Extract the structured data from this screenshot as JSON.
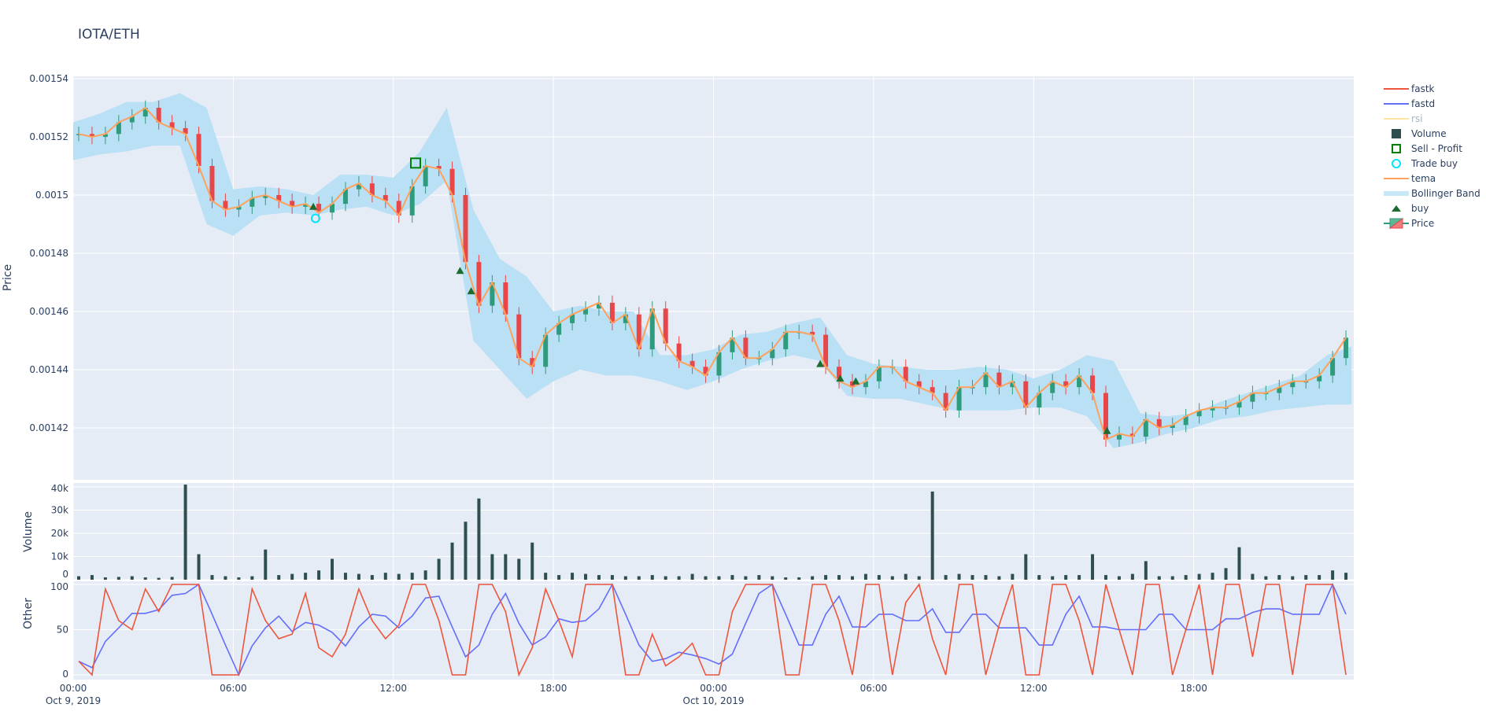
{
  "chart_data": {
    "type": "candlestick",
    "title": "IOTA/ETH",
    "colors": {
      "plot_bg": "#e5ecf6",
      "increasing": "#2e9c7c",
      "decreasing": "#e8474a",
      "tema": "#ffa15a",
      "bollinger": "#b9e0f5",
      "volume": "#2f4f4f",
      "fastk": "#ef553b",
      "fastd": "#636efa",
      "rsi": "#ffe4a0",
      "buy": "#1b6b32",
      "trade_buy": "#00e5ff",
      "sell_profit": "#008000"
    },
    "legend": {
      "position": "right",
      "items": [
        {
          "name": "fastk",
          "icon": "line",
          "color": "#ef553b"
        },
        {
          "name": "fastd",
          "icon": "line",
          "color": "#636efa"
        },
        {
          "name": "rsi",
          "icon": "line",
          "color": "#ffe4a0",
          "hidden": true
        },
        {
          "name": "Volume",
          "icon": "square",
          "color": "#2f4f4f"
        },
        {
          "name": "Sell - Profit",
          "icon": "open-square",
          "color": "#008000"
        },
        {
          "name": "Trade buy",
          "icon": "open-circle",
          "color": "#00e5ff"
        },
        {
          "name": "tema",
          "icon": "line",
          "color": "#ffa15a"
        },
        {
          "name": "Bollinger Band",
          "icon": "band",
          "color": "#c6e8f7"
        },
        {
          "name": "buy",
          "icon": "triangle-up",
          "color": "#1b6b32"
        },
        {
          "name": "Price",
          "icon": "candle",
          "color": "#2e9c7c"
        }
      ]
    },
    "panels": [
      {
        "ylabel": "Price",
        "ylim": [
          0.001402,
          0.00154
        ],
        "yticks": [
          "0.00142",
          "0.00144",
          "0.00146",
          "0.00148",
          "0.0015",
          "0.00152",
          "0.00154"
        ],
        "ytick_values": [
          0.00142,
          0.00144,
          0.00146,
          0.00148,
          0.0015,
          0.00152,
          0.00154
        ]
      },
      {
        "ylabel": "Volume",
        "ylim": [
          0,
          41500
        ],
        "yticks": [
          "0",
          "10k",
          "20k",
          "30k",
          "40k"
        ],
        "ytick_values": [
          0,
          10000,
          20000,
          30000,
          40000
        ]
      },
      {
        "ylabel": "Other",
        "ylim": [
          -5,
          104
        ],
        "yticks": [
          "0",
          "50",
          "100"
        ],
        "ytick_values": [
          0,
          50,
          100
        ]
      }
    ],
    "xlim": [
      "2019-10-09 00:00",
      "2019-10-10 23:55"
    ],
    "xticks": [
      {
        "time": "2019-10-09 00:00",
        "label": "00:00",
        "sublabel": "Oct 9, 2019"
      },
      {
        "time": "2019-10-09 06:00",
        "label": "06:00",
        "sublabel": ""
      },
      {
        "time": "2019-10-09 12:00",
        "label": "12:00",
        "sublabel": ""
      },
      {
        "time": "2019-10-09 18:00",
        "label": "18:00",
        "sublabel": ""
      },
      {
        "time": "2019-10-10 00:00",
        "label": "00:00",
        "sublabel": "Oct 10, 2019"
      },
      {
        "time": "2019-10-10 06:00",
        "label": "06:00",
        "sublabel": ""
      },
      {
        "time": "2019-10-10 12:00",
        "label": "12:00",
        "sublabel": ""
      },
      {
        "time": "2019-10-10 18:00",
        "label": "18:00",
        "sublabel": ""
      }
    ],
    "x": [
      "2019-10-09 00:00",
      "2019-10-09 00:30",
      "2019-10-09 01:00",
      "2019-10-09 01:30",
      "2019-10-09 02:00",
      "2019-10-09 02:30",
      "2019-10-09 03:00",
      "2019-10-09 03:30",
      "2019-10-09 04:00",
      "2019-10-09 04:30",
      "2019-10-09 05:00",
      "2019-10-09 05:30",
      "2019-10-09 06:00",
      "2019-10-09 06:30",
      "2019-10-09 07:00",
      "2019-10-09 07:30",
      "2019-10-09 08:00",
      "2019-10-09 08:30",
      "2019-10-09 09:00",
      "2019-10-09 09:30",
      "2019-10-09 10:00",
      "2019-10-09 10:30",
      "2019-10-09 11:00",
      "2019-10-09 11:30",
      "2019-10-09 12:00",
      "2019-10-09 12:30",
      "2019-10-09 13:00",
      "2019-10-09 13:30",
      "2019-10-09 14:00",
      "2019-10-09 14:30",
      "2019-10-09 15:00",
      "2019-10-09 15:30",
      "2019-10-09 16:00",
      "2019-10-09 16:30",
      "2019-10-09 17:00",
      "2019-10-09 17:30",
      "2019-10-09 18:00",
      "2019-10-09 18:30",
      "2019-10-09 19:00",
      "2019-10-09 19:30",
      "2019-10-09 20:00",
      "2019-10-09 20:30",
      "2019-10-09 21:00",
      "2019-10-09 21:30",
      "2019-10-09 22:00",
      "2019-10-09 22:30",
      "2019-10-09 23:00",
      "2019-10-09 23:30",
      "2019-10-10 00:00",
      "2019-10-10 00:30",
      "2019-10-10 01:00",
      "2019-10-10 01:30",
      "2019-10-10 02:00",
      "2019-10-10 02:30",
      "2019-10-10 03:00",
      "2019-10-10 03:30",
      "2019-10-10 04:00",
      "2019-10-10 04:30",
      "2019-10-10 05:00",
      "2019-10-10 05:30",
      "2019-10-10 06:00",
      "2019-10-10 06:30",
      "2019-10-10 07:00",
      "2019-10-10 07:30",
      "2019-10-10 08:00",
      "2019-10-10 08:30",
      "2019-10-10 09:00",
      "2019-10-10 09:30",
      "2019-10-10 10:00",
      "2019-10-10 10:30",
      "2019-10-10 11:00",
      "2019-10-10 11:30",
      "2019-10-10 12:00",
      "2019-10-10 12:30",
      "2019-10-10 13:00",
      "2019-10-10 13:30",
      "2019-10-10 14:00",
      "2019-10-10 14:30",
      "2019-10-10 15:00",
      "2019-10-10 15:30",
      "2019-10-10 16:00",
      "2019-10-10 16:30",
      "2019-10-10 17:00",
      "2019-10-10 17:30",
      "2019-10-10 18:00",
      "2019-10-10 18:30",
      "2019-10-10 19:00",
      "2019-10-10 19:30",
      "2019-10-10 20:00",
      "2019-10-10 20:30",
      "2019-10-10 21:00",
      "2019-10-10 21:30",
      "2019-10-10 22:00",
      "2019-10-10 22:30",
      "2019-10-10 23:00",
      "2019-10-10 23:30"
    ],
    "price_close": [
      0.001521,
      0.00152,
      0.001521,
      0.001525,
      0.001527,
      0.00153,
      0.001525,
      0.001523,
      0.001521,
      0.00151,
      0.001498,
      0.001495,
      0.001496,
      0.001499,
      0.0015,
      0.001498,
      0.001496,
      0.001497,
      0.001494,
      0.001497,
      0.001502,
      0.001504,
      0.0015,
      0.001498,
      0.001493,
      0.001503,
      0.00151,
      0.001509,
      0.0015,
      0.001477,
      0.001462,
      0.00147,
      0.001459,
      0.001444,
      0.001441,
      0.001452,
      0.001456,
      0.001459,
      0.001461,
      0.001463,
      0.001456,
      0.001459,
      0.001447,
      0.001461,
      0.001449,
      0.001443,
      0.001441,
      0.001438,
      0.001446,
      0.001451,
      0.001444,
      0.001444,
      0.001447,
      0.001453,
      0.001453,
      0.001452,
      0.001441,
      0.001436,
      0.001434,
      0.001436,
      0.001441,
      0.001441,
      0.001436,
      0.001434,
      0.001432,
      0.001426,
      0.001434,
      0.001434,
      0.001439,
      0.001434,
      0.001436,
      0.001427,
      0.001432,
      0.001436,
      0.001434,
      0.001438,
      0.001432,
      0.001416,
      0.001418,
      0.001417,
      0.001423,
      0.00142,
      0.001421,
      0.001424,
      0.001426,
      0.001427,
      0.001427,
      0.001429,
      0.001432,
      0.001432,
      0.001434,
      0.001436,
      0.001436,
      0.001438,
      0.001444,
      0.001451
    ],
    "tema": [
      0.001521,
      0.00152,
      0.001521,
      0.001525,
      0.001527,
      0.00153,
      0.001525,
      0.001523,
      0.001521,
      0.00151,
      0.001498,
      0.001495,
      0.001496,
      0.001499,
      0.0015,
      0.001498,
      0.001496,
      0.001497,
      0.001494,
      0.001497,
      0.001502,
      0.001504,
      0.0015,
      0.001498,
      0.001493,
      0.001503,
      0.00151,
      0.001509,
      0.0015,
      0.001477,
      0.001462,
      0.00147,
      0.001459,
      0.001444,
      0.001441,
      0.001452,
      0.001456,
      0.001459,
      0.001461,
      0.001463,
      0.001456,
      0.001459,
      0.001447,
      0.001461,
      0.001449,
      0.001443,
      0.001441,
      0.001438,
      0.001446,
      0.001451,
      0.001444,
      0.001444,
      0.001447,
      0.001453,
      0.001453,
      0.001452,
      0.001441,
      0.001436,
      0.001434,
      0.001436,
      0.001441,
      0.001441,
      0.001436,
      0.001434,
      0.001432,
      0.001426,
      0.001434,
      0.001434,
      0.001439,
      0.001434,
      0.001436,
      0.001427,
      0.001432,
      0.001436,
      0.001434,
      0.001438,
      0.001432,
      0.001416,
      0.001418,
      0.001417,
      0.001423,
      0.00142,
      0.001421,
      0.001424,
      0.001426,
      0.001427,
      0.001427,
      0.001429,
      0.001432,
      0.001432,
      0.001434,
      0.001436,
      0.001436,
      0.001438,
      0.001444,
      0.001451
    ],
    "bollinger_x": [
      "2019-10-09 00:00",
      "2019-10-09 01:00",
      "2019-10-09 02:00",
      "2019-10-09 03:00",
      "2019-10-09 04:00",
      "2019-10-09 05:00",
      "2019-10-09 06:00",
      "2019-10-09 07:00",
      "2019-10-09 08:00",
      "2019-10-09 09:00",
      "2019-10-09 10:00",
      "2019-10-09 11:00",
      "2019-10-09 12:00",
      "2019-10-09 13:00",
      "2019-10-09 14:00",
      "2019-10-09 15:00",
      "2019-10-09 16:00",
      "2019-10-09 17:00",
      "2019-10-09 18:00",
      "2019-10-09 19:00",
      "2019-10-09 20:00",
      "2019-10-09 21:00",
      "2019-10-09 22:00",
      "2019-10-09 23:00",
      "2019-10-10 00:00",
      "2019-10-10 01:00",
      "2019-10-10 02:00",
      "2019-10-10 03:00",
      "2019-10-10 04:00",
      "2019-10-10 05:00",
      "2019-10-10 06:00",
      "2019-10-10 07:00",
      "2019-10-10 08:00",
      "2019-10-10 09:00",
      "2019-10-10 10:00",
      "2019-10-10 11:00",
      "2019-10-10 12:00",
      "2019-10-10 13:00",
      "2019-10-10 14:00",
      "2019-10-10 15:00",
      "2019-10-10 16:00",
      "2019-10-10 17:00",
      "2019-10-10 18:00",
      "2019-10-10 19:00",
      "2019-10-10 20:00",
      "2019-10-10 21:00",
      "2019-10-10 22:00",
      "2019-10-10 23:00",
      "2019-10-10 23:55"
    ],
    "bollinger_upper": [
      0.001525,
      0.001528,
      0.001532,
      0.001532,
      0.001535,
      0.00153,
      0.001502,
      0.001503,
      0.001502,
      0.0015,
      0.001507,
      0.001507,
      0.001506,
      0.001515,
      0.00153,
      0.001495,
      0.001478,
      0.001472,
      0.00146,
      0.001462,
      0.00146,
      0.00146,
      0.001445,
      0.001445,
      0.001447,
      0.001452,
      0.001453,
      0.001456,
      0.001458,
      0.001445,
      0.001442,
      0.001441,
      0.00144,
      0.00144,
      0.001441,
      0.00144,
      0.001437,
      0.00144,
      0.001445,
      0.001443,
      0.001425,
      0.001424,
      0.001425,
      0.001429,
      0.001432,
      0.001435,
      0.001438,
      0.001445,
      0.001448
    ],
    "bollinger_lower": [
      0.001512,
      0.001514,
      0.001515,
      0.001517,
      0.001517,
      0.00149,
      0.001486,
      0.001493,
      0.001494,
      0.001493,
      0.001495,
      0.001496,
      0.001493,
      0.001497,
      0.001505,
      0.00145,
      0.00144,
      0.00143,
      0.001436,
      0.00144,
      0.001438,
      0.001438,
      0.001436,
      0.001433,
      0.001436,
      0.00144,
      0.001443,
      0.001445,
      0.001443,
      0.001431,
      0.00143,
      0.00143,
      0.001428,
      0.001426,
      0.001426,
      0.001426,
      0.001427,
      0.001427,
      0.001424,
      0.001413,
      0.001415,
      0.001418,
      0.00142,
      0.001423,
      0.001424,
      0.001426,
      0.001427,
      0.001428,
      0.001428
    ],
    "volume": [
      1500,
      2000,
      1000,
      1200,
      1500,
      1000,
      800,
      1200,
      41000,
      11000,
      2000,
      1500,
      1000,
      1500,
      13000,
      2000,
      2500,
      3000,
      4000,
      9000,
      3000,
      2500,
      2000,
      3000,
      2500,
      3000,
      4000,
      9000,
      16000,
      25000,
      35000,
      11000,
      11000,
      9000,
      16000,
      3000,
      2000,
      3000,
      2500,
      2000,
      2000,
      1500,
      1500,
      2000,
      1500,
      1500,
      2500,
      1500,
      1500,
      2000,
      1500,
      2000,
      1500,
      1000,
      1000,
      1500,
      2000,
      2000,
      1500,
      2500,
      2000,
      1500,
      2500,
      1500,
      38000,
      2000,
      2500,
      2000,
      2000,
      1500,
      2500,
      11000,
      2000,
      1500,
      2000,
      2000,
      11000,
      2000,
      1500,
      2500,
      8000,
      1500,
      1500,
      2000,
      2500,
      3000,
      5000,
      14000,
      2500,
      1500,
      2000,
      1500,
      2000,
      2000,
      4000,
      3000
    ],
    "fastk": [
      15,
      0,
      95,
      60,
      50,
      95,
      70,
      100,
      100,
      100,
      0,
      0,
      0,
      95,
      60,
      40,
      45,
      90,
      30,
      20,
      45,
      95,
      60,
      40,
      55,
      100,
      100,
      60,
      0,
      0,
      100,
      100,
      70,
      0,
      30,
      95,
      60,
      20,
      100,
      100,
      100,
      0,
      0,
      45,
      10,
      20,
      35,
      0,
      0,
      70,
      100,
      100,
      100,
      0,
      0,
      100,
      100,
      60,
      0,
      100,
      100,
      0,
      80,
      100,
      40,
      0,
      100,
      100,
      0,
      55,
      100,
      0,
      0,
      100,
      100,
      60,
      0,
      100,
      50,
      0,
      100,
      100,
      0,
      50,
      100,
      0,
      100,
      100,
      20,
      100,
      100,
      0,
      100,
      100,
      100,
      0
    ],
    "fastd": [
      15,
      8,
      37,
      52,
      68,
      68,
      72,
      88,
      90,
      100,
      67,
      33,
      0,
      32,
      52,
      65,
      48,
      58,
      55,
      47,
      32,
      53,
      67,
      65,
      52,
      65,
      85,
      87,
      53,
      20,
      33,
      67,
      90,
      57,
      33,
      42,
      62,
      58,
      60,
      73,
      100,
      67,
      33,
      15,
      18,
      25,
      22,
      18,
      12,
      23,
      57,
      90,
      100,
      67,
      33,
      33,
      67,
      87,
      53,
      53,
      67,
      67,
      60,
      60,
      73,
      47,
      47,
      67,
      67,
      52,
      52,
      52,
      33,
      33,
      67,
      87,
      53,
      53,
      50,
      50,
      50,
      67,
      67,
      50,
      50,
      50,
      62,
      62,
      69,
      73,
      73,
      67,
      67,
      67,
      100,
      67
    ],
    "buy_signals": [
      {
        "time": "2019-10-09 09:00",
        "price": 0.001496
      },
      {
        "time": "2019-10-09 14:30",
        "price": 0.001474
      },
      {
        "time": "2019-10-09 14:55",
        "price": 0.001467
      },
      {
        "time": "2019-10-10 04:00",
        "price": 0.001442
      },
      {
        "time": "2019-10-10 04:45",
        "price": 0.001437
      },
      {
        "time": "2019-10-10 05:20",
        "price": 0.001436
      },
      {
        "time": "2019-10-10 14:45",
        "price": 0.001419
      }
    ],
    "trade_buys": [
      {
        "time": "2019-10-09 09:05",
        "price": 0.001492
      }
    ],
    "sell_profit": [
      {
        "time": "2019-10-09 12:50",
        "price": 0.001511
      }
    ]
  }
}
